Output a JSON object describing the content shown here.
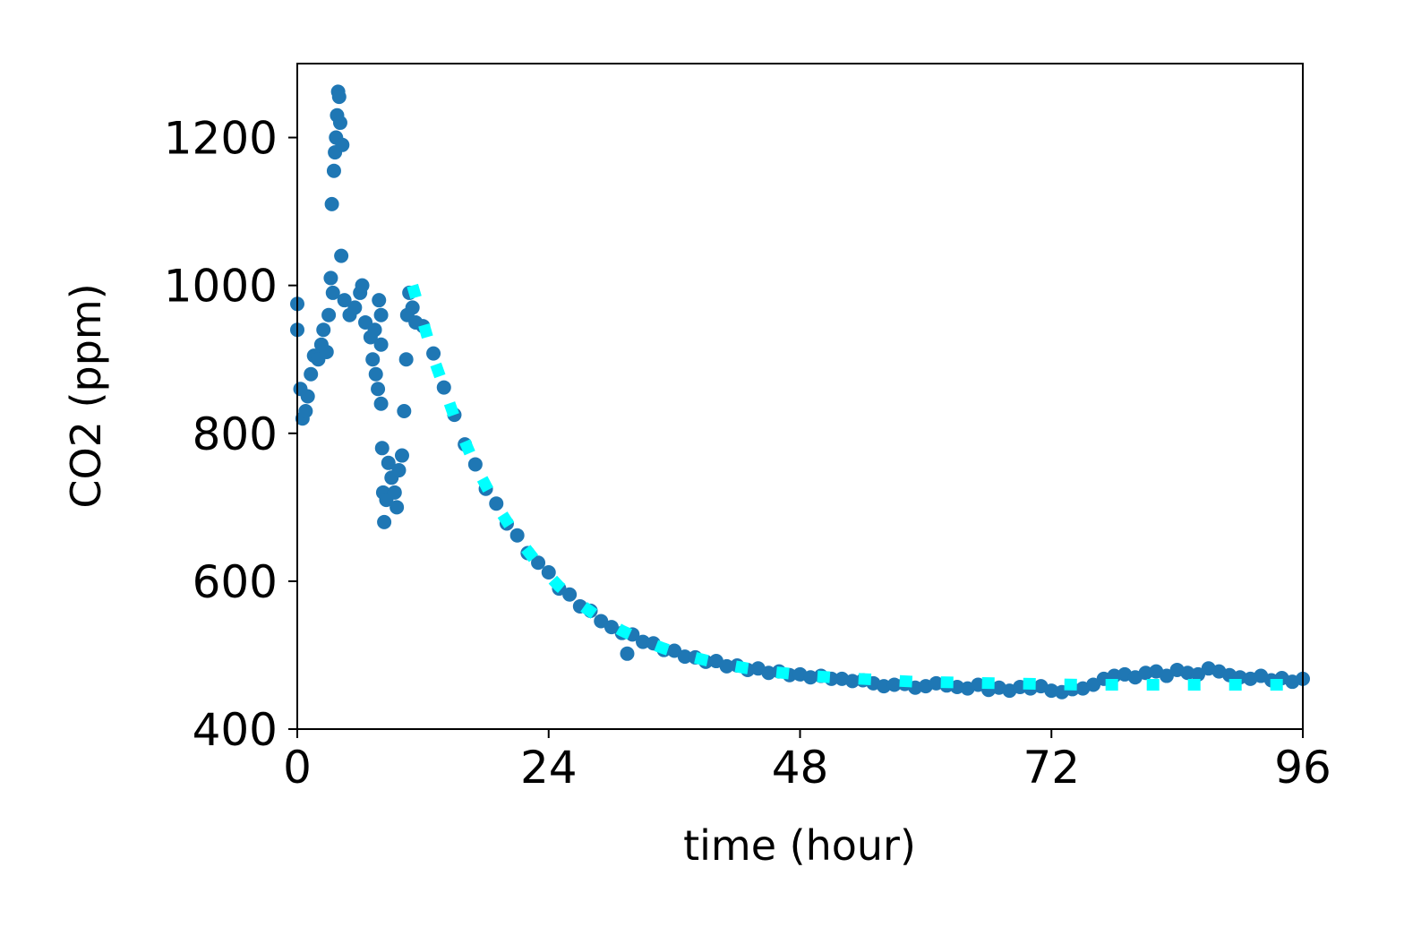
{
  "chart_data": {
    "type": "scatter",
    "x_label": "time (hour)",
    "y_label": "CO2 (ppm)",
    "xlim": [
      0,
      96
    ],
    "xticks": [
      0,
      24,
      48,
      72,
      96
    ],
    "ylim": [
      400,
      1300
    ],
    "yticks": [
      400,
      600,
      800,
      1000,
      1200
    ],
    "series": [
      {
        "type": "scatter",
        "color": "#1f77b4",
        "x": [
          0,
          0,
          0.3,
          0.5,
          0.8,
          1,
          1.3,
          1.6,
          2,
          2.3,
          2.5,
          2.8,
          3,
          3.2,
          3.4,
          3.3,
          3.5,
          3.6,
          3.7,
          3.8,
          3.9,
          4,
          4.1,
          4.3,
          4.2,
          4.5,
          5,
          5.5,
          6,
          6.2,
          6.5,
          7,
          7.2,
          7.5,
          7.7,
          7.4,
          7.8,
          8,
          8,
          8,
          8.1,
          8.2,
          8.3,
          8.5,
          8.7,
          9,
          9.3,
          9.5,
          9.7,
          10,
          10.2,
          10.4,
          10.5,
          10.7,
          11,
          11.3,
          12,
          13,
          14,
          15,
          16,
          17,
          18,
          19,
          20,
          21,
          22,
          23,
          24,
          25,
          26,
          27,
          28,
          29,
          30,
          31,
          31.5,
          32,
          33,
          34,
          35,
          36,
          37,
          38,
          39,
          40,
          41,
          42,
          43,
          44,
          45,
          46,
          47,
          48,
          49,
          50,
          51,
          52,
          53,
          54,
          55,
          56,
          57,
          58,
          59,
          60,
          61,
          62,
          63,
          64,
          65,
          66,
          67,
          68,
          69,
          70,
          71,
          72,
          73,
          74,
          75,
          76,
          77,
          78,
          79,
          80,
          81,
          82,
          83,
          84,
          85,
          86,
          87,
          88,
          89,
          90,
          91,
          92,
          93,
          94,
          95,
          96
        ],
        "values": [
          975,
          940,
          860,
          820,
          830,
          850,
          880,
          905,
          900,
          920,
          940,
          910,
          960,
          1010,
          990,
          1110,
          1155,
          1180,
          1200,
          1230,
          1262,
          1255,
          1220,
          1190,
          1040,
          980,
          960,
          970,
          990,
          1000,
          950,
          930,
          900,
          880,
          860,
          940,
          980,
          960,
          920,
          840,
          780,
          720,
          680,
          710,
          760,
          740,
          720,
          700,
          750,
          770,
          830,
          900,
          960,
          990,
          970,
          950,
          945,
          908,
          862,
          825,
          785,
          758,
          725,
          705,
          678,
          662,
          638,
          625,
          612,
          590,
          582,
          566,
          560,
          546,
          538,
          530,
          502,
          528,
          518,
          516,
          507,
          506,
          498,
          497,
          491,
          492,
          485,
          486,
          480,
          482,
          476,
          478,
          473,
          474,
          470,
          472,
          468,
          468,
          465,
          466,
          462,
          458,
          460,
          461,
          456,
          458,
          462,
          459,
          457,
          455,
          460,
          453,
          456,
          452,
          457,
          455,
          458,
          452,
          450,
          454,
          455,
          460,
          468,
          472,
          474,
          470,
          476,
          478,
          472,
          480,
          476,
          474,
          482,
          478,
          473,
          470,
          468,
          472,
          466,
          469,
          464,
          468
        ]
      },
      {
        "type": "line",
        "style": "dotted",
        "color": "#00ffff",
        "x": [
          11,
          13,
          15,
          17,
          19,
          21,
          23,
          25,
          27,
          29,
          31,
          33,
          35,
          37,
          39,
          41,
          43,
          45,
          47,
          49,
          51,
          55,
          59,
          63,
          67,
          71,
          75,
          79,
          83,
          87,
          91,
          96
        ],
        "values": [
          1000,
          902,
          822,
          756,
          703,
          659,
          623,
          593,
          569,
          549,
          533,
          520,
          509,
          500,
          493,
          487,
          482,
          478,
          475,
          472,
          470,
          467,
          464,
          463,
          462,
          461,
          460,
          460,
          460,
          460,
          460,
          460
        ]
      }
    ]
  }
}
